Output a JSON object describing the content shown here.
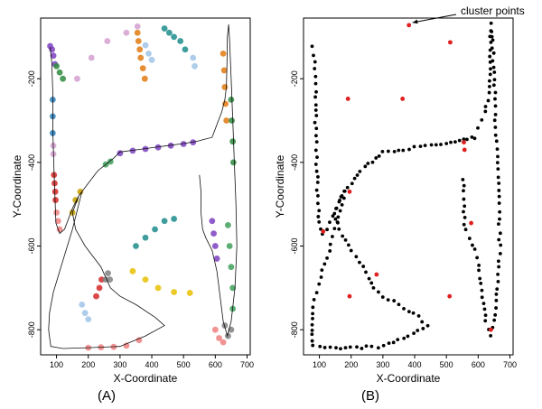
{
  "chart_data": [
    {
      "type": "scatter",
      "panel_label": "(A)",
      "xlabel": "X-Coordinate",
      "ylabel": "Y-Coordinate",
      "xlim": [
        50,
        710
      ],
      "ylim": [
        -860,
        -55
      ],
      "xticks": [
        100,
        200,
        300,
        400,
        500,
        600,
        700
      ],
      "yticks": [
        -200,
        -400,
        -600,
        -800
      ],
      "legend": "none",
      "style": "colored clusters along a hand-drawn trajectory, black path line",
      "path": [
        [
          80,
          -125
        ],
        [
          85,
          -160
        ],
        [
          88,
          -230
        ],
        [
          88,
          -320
        ],
        [
          92,
          -420
        ],
        [
          95,
          -480
        ],
        [
          98,
          -545
        ],
        [
          110,
          -570
        ],
        [
          125,
          -560
        ],
        [
          150,
          -510
        ],
        [
          170,
          -480
        ],
        [
          180,
          -470
        ],
        [
          170,
          -500
        ],
        [
          150,
          -560
        ],
        [
          130,
          -610
        ],
        [
          110,
          -660
        ],
        [
          90,
          -710
        ],
        [
          78,
          -760
        ],
        [
          75,
          -800
        ],
        [
          82,
          -840
        ],
        [
          120,
          -845
        ],
        [
          200,
          -843
        ],
        [
          300,
          -840
        ],
        [
          380,
          -815
        ],
        [
          440,
          -790
        ],
        [
          410,
          -770
        ],
        [
          350,
          -740
        ],
        [
          300,
          -720
        ],
        [
          270,
          -700
        ],
        [
          240,
          -650
        ],
        [
          190,
          -600
        ],
        [
          160,
          -560
        ],
        [
          150,
          -520
        ],
        [
          170,
          -480
        ],
        [
          200,
          -450
        ],
        [
          230,
          -420
        ],
        [
          255,
          -405
        ],
        [
          280,
          -390
        ],
        [
          300,
          -375
        ],
        [
          350,
          -370
        ],
        [
          400,
          -365
        ],
        [
          450,
          -360
        ],
        [
          500,
          -355
        ],
        [
          540,
          -350
        ],
        [
          565,
          -345
        ],
        [
          590,
          -340
        ],
        [
          600,
          -320
        ],
        [
          610,
          -300
        ],
        [
          620,
          -280
        ],
        [
          630,
          -250
        ],
        [
          635,
          -220
        ],
        [
          637,
          -160
        ],
        [
          638,
          -100
        ],
        [
          642,
          -70
        ],
        [
          645,
          -110
        ],
        [
          650,
          -200
        ],
        [
          655,
          -300
        ],
        [
          660,
          -400
        ],
        [
          665,
          -500
        ],
        [
          668,
          -600
        ],
        [
          662,
          -700
        ],
        [
          650,
          -780
        ],
        [
          638,
          -815
        ],
        [
          625,
          -780
        ],
        [
          615,
          -720
        ],
        [
          605,
          -660
        ],
        [
          590,
          -610
        ],
        [
          570,
          -580
        ],
        [
          560,
          -560
        ],
        [
          555,
          -520
        ],
        [
          555,
          -470
        ],
        [
          550,
          -430
        ]
      ],
      "clusters": [
        {
          "color": "#7b3fbf",
          "points": [
            [
              80,
              -122
            ],
            [
              86,
              -130
            ],
            [
              90,
              -145
            ],
            [
              95,
              -165
            ]
          ]
        },
        {
          "color": "#2e8b3e",
          "points": [
            [
              100,
              -170
            ],
            [
              110,
              -185
            ],
            [
              120,
              -200
            ]
          ]
        },
        {
          "color": "#d4a0d0",
          "points": [
            [
              165,
              -200
            ],
            [
              210,
              -150
            ],
            [
              260,
              -110
            ],
            [
              320,
              -90
            ],
            [
              355,
              -75
            ]
          ]
        },
        {
          "color": "#e07a10",
          "points": [
            [
              355,
              -90
            ],
            [
              358,
              -110
            ],
            [
              362,
              -130
            ],
            [
              365,
              -150
            ],
            [
              372,
              -175
            ],
            [
              378,
              -200
            ]
          ]
        },
        {
          "color": "#2c7fb8",
          "points": [
            [
              88,
              -250
            ],
            [
              88,
              -290
            ],
            [
              88,
              -330
            ]
          ]
        },
        {
          "color": "#d4a0d0",
          "points": [
            [
              90,
              -360
            ],
            [
              90,
              -380
            ]
          ]
        },
        {
          "color": "#d62728",
          "points": [
            [
              92,
              -430
            ],
            [
              94,
              -450
            ],
            [
              96,
              -470
            ],
            [
              97,
              -490
            ]
          ]
        },
        {
          "color": "#f08080",
          "points": [
            [
              100,
              -520
            ],
            [
              105,
              -540
            ],
            [
              110,
              -560
            ]
          ]
        },
        {
          "color": "#1f8c8c",
          "points": [
            [
              440,
              -80
            ],
            [
              455,
              -90
            ],
            [
              470,
              -100
            ],
            [
              490,
              -110
            ],
            [
              505,
              -130
            ]
          ]
        },
        {
          "color": "#a0c4e8",
          "points": [
            [
              380,
              -120
            ],
            [
              390,
              -140
            ],
            [
              400,
              -155
            ],
            [
              530,
              -150
            ],
            [
              535,
              -170
            ]
          ]
        },
        {
          "color": "#7b3fbf",
          "points": [
            [
              300,
              -378
            ],
            [
              340,
              -372
            ],
            [
              380,
              -368
            ],
            [
              420,
              -364
            ],
            [
              460,
              -360
            ],
            [
              500,
              -356
            ],
            [
              530,
              -352
            ]
          ]
        },
        {
          "color": "#3fa05a",
          "points": [
            [
              255,
              -405
            ],
            [
              270,
              -398
            ]
          ]
        },
        {
          "color": "#e07a10",
          "points": [
            [
              625,
              -140
            ],
            [
              628,
              -180
            ],
            [
              630,
              -220
            ],
            [
              632,
              -260
            ],
            [
              635,
              -300
            ]
          ]
        },
        {
          "color": "#2e8b3e",
          "points": [
            [
              650,
              -250
            ],
            [
              652,
              -300
            ],
            [
              655,
              -350
            ],
            [
              657,
              -400
            ]
          ]
        },
        {
          "color": "#c8a000",
          "points": [
            [
              150,
              -520
            ],
            [
              160,
              -490
            ],
            [
              175,
              -470
            ]
          ]
        },
        {
          "color": "#a0c4e8",
          "points": [
            [
              180,
              -740
            ],
            [
              190,
              -760
            ],
            [
              200,
              -775
            ]
          ]
        },
        {
          "color": "#d62728",
          "points": [
            [
              225,
              -720
            ],
            [
              235,
              -700
            ],
            [
              242,
              -680
            ]
          ]
        },
        {
          "color": "#808080",
          "points": [
            [
              255,
              -680
            ],
            [
              262,
              -665
            ],
            [
              268,
              -680
            ]
          ]
        },
        {
          "color": "#1f8c8c",
          "points": [
            [
              350,
              -600
            ],
            [
              380,
              -580
            ],
            [
              410,
              -560
            ],
            [
              440,
              -540
            ],
            [
              470,
              -535
            ]
          ]
        },
        {
          "color": "#e8c000",
          "points": [
            [
              340,
              -660
            ],
            [
              380,
              -680
            ],
            [
              420,
              -700
            ],
            [
              470,
              -710
            ],
            [
              520,
              -712
            ]
          ]
        },
        {
          "color": "#7b3fbf",
          "points": [
            [
              590,
              -540
            ],
            [
              595,
              -570
            ],
            [
              600,
              -600
            ],
            [
              605,
              -630
            ]
          ]
        },
        {
          "color": "#3fa05a",
          "points": [
            [
              640,
              -550
            ],
            [
              645,
              -600
            ],
            [
              650,
              -650
            ],
            [
              655,
              -700
            ],
            [
              655,
              -750
            ]
          ]
        },
        {
          "color": "#f08080",
          "points": [
            [
              600,
              -800
            ],
            [
              612,
              -820
            ],
            [
              625,
              -830
            ]
          ]
        },
        {
          "color": "#808080",
          "points": [
            [
              630,
              -790
            ],
            [
              640,
              -815
            ],
            [
              650,
              -800
            ]
          ]
        },
        {
          "color": "#f08080",
          "points": [
            [
              200,
              -843
            ],
            [
              240,
              -842
            ],
            [
              280,
              -841
            ],
            [
              320,
              -838
            ],
            [
              360,
              -825
            ]
          ]
        }
      ]
    },
    {
      "type": "scatter",
      "panel_label": "(B)",
      "xlabel": "X-Coordinate",
      "ylabel": "Y-Coordinate",
      "xlim": [
        50,
        710
      ],
      "ylim": [
        -860,
        -55
      ],
      "xticks": [
        100,
        200,
        300,
        400,
        500,
        600,
        700
      ],
      "yticks": [
        -200,
        -400,
        -600,
        -800
      ],
      "legend": "none",
      "point_color": "#000000",
      "cluster_color": "#e02020",
      "annotation": "cluster points",
      "annotation_target": [
        382,
        -70
      ],
      "cluster_points": [
        [
          382,
          -72
        ],
        [
          362,
          -248
        ],
        [
          190,
          -248
        ],
        [
          555,
          -352
        ],
        [
          557,
          -370
        ],
        [
          112,
          -565
        ],
        [
          578,
          -545
        ],
        [
          195,
          -470
        ],
        [
          510,
          -720
        ],
        [
          640,
          -800
        ],
        [
          280,
          -668
        ],
        [
          195,
          -720
        ],
        [
          512,
          -113
        ]
      ]
    }
  ]
}
